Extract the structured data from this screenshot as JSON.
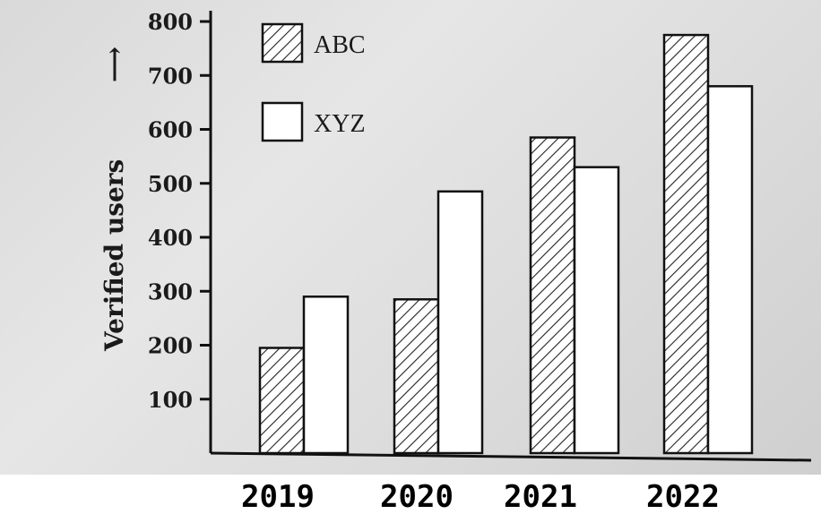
{
  "chart_data": {
    "type": "bar",
    "categories": [
      "2019",
      "2020",
      "2021",
      "2022"
    ],
    "series": [
      {
        "name": "ABC",
        "pattern": "hatched",
        "values": [
          195,
          285,
          585,
          775
        ]
      },
      {
        "name": "XYZ",
        "pattern": "plain",
        "values": [
          290,
          485,
          530,
          680
        ]
      }
    ],
    "ylabel": "Verified users",
    "ylabel_arrow": "⟶",
    "ylim": [
      0,
      800
    ],
    "yticks": [
      "100",
      "200",
      "300",
      "400",
      "500",
      "600",
      "700",
      "800"
    ],
    "legend_placement": "top-left",
    "grid": false,
    "colors": {
      "bar_stroke": "#111111",
      "hatch": "#222222",
      "plain_fill": "#ffffff",
      "background": "#dedede"
    }
  }
}
